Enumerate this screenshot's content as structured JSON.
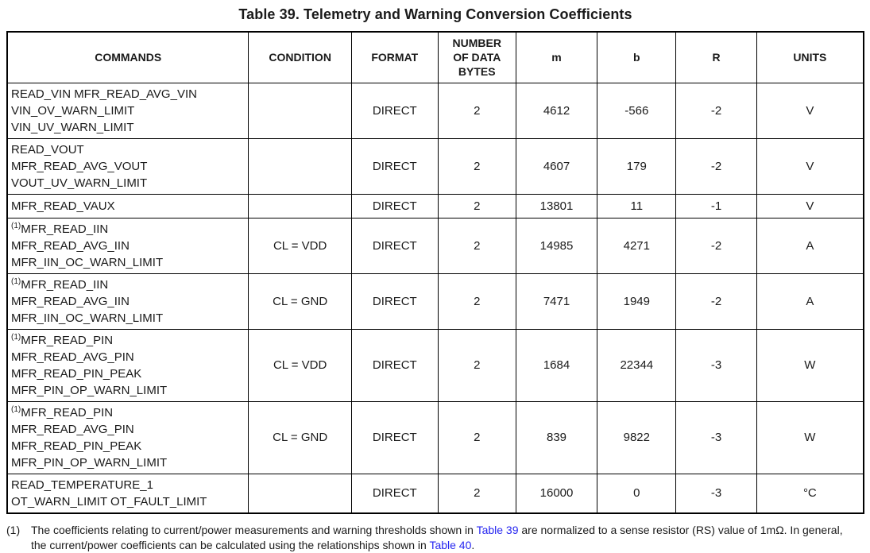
{
  "title": "Table 39. Telemetry and Warning Conversion Coefficients",
  "colors": {
    "link": "#2626f0",
    "text": "#1a1a1a",
    "border": "#000000"
  },
  "table": {
    "headers": [
      {
        "id": "commands",
        "label": "COMMANDS"
      },
      {
        "id": "condition",
        "label": "CONDITION"
      },
      {
        "id": "format",
        "label": "FORMAT"
      },
      {
        "id": "bytes",
        "label": "NUMBER\nOF DATA\nBYTES"
      },
      {
        "id": "m",
        "label": "m"
      },
      {
        "id": "b",
        "label": "b"
      },
      {
        "id": "r",
        "label": "R"
      },
      {
        "id": "units",
        "label": "UNITS"
      }
    ],
    "rows": [
      {
        "sup": "",
        "commands": [
          "READ_VIN MFR_READ_AVG_VIN",
          "VIN_OV_WARN_LIMIT",
          "VIN_UV_WARN_LIMIT"
        ],
        "condition": "",
        "format": "DIRECT",
        "bytes": "2",
        "m": "4612",
        "b": "-566",
        "r": "-2",
        "units": "V",
        "size": "r-3line"
      },
      {
        "sup": "",
        "commands": [
          "READ_VOUT",
          "MFR_READ_AVG_VOUT",
          "VOUT_UV_WARN_LIMIT"
        ],
        "condition": "",
        "format": "DIRECT",
        "bytes": "2",
        "m": "4607",
        "b": "179",
        "r": "-2",
        "units": "V",
        "size": "r-3line"
      },
      {
        "sup": "",
        "commands": [
          "MFR_READ_VAUX"
        ],
        "condition": "",
        "format": "DIRECT",
        "bytes": "2",
        "m": "13801",
        "b": "11",
        "r": "-1",
        "units": "V",
        "size": "r-1line"
      },
      {
        "sup": "(1)",
        "commands": [
          "MFR_READ_IIN",
          "MFR_READ_AVG_IIN",
          "MFR_IIN_OC_WARN_LIMIT"
        ],
        "condition": "CL = VDD",
        "format": "DIRECT",
        "bytes": "2",
        "m": "14985",
        "b": "4271",
        "r": "-2",
        "units": "A",
        "size": "r-3line"
      },
      {
        "sup": "(1)",
        "commands": [
          "MFR_READ_IIN",
          "MFR_READ_AVG_IIN",
          "MFR_IIN_OC_WARN_LIMIT"
        ],
        "condition": "CL = GND",
        "format": "DIRECT",
        "bytes": "2",
        "m": "7471",
        "b": "1949",
        "r": "-2",
        "units": "A",
        "size": "r-3line"
      },
      {
        "sup": "(1)",
        "commands": [
          "MFR_READ_PIN",
          "MFR_READ_AVG_PIN",
          "MFR_READ_PIN_PEAK",
          "MFR_PIN_OP_WARN_LIMIT"
        ],
        "condition": "CL = VDD",
        "format": "DIRECT",
        "bytes": "2",
        "m": "1684",
        "b": "22344",
        "r": "-3",
        "units": "W",
        "size": "r-4line"
      },
      {
        "sup": "(1)",
        "commands": [
          "MFR_READ_PIN",
          "MFR_READ_AVG_PIN",
          "MFR_READ_PIN_PEAK",
          "MFR_PIN_OP_WARN_LIMIT"
        ],
        "condition": "CL = GND",
        "format": "DIRECT",
        "bytes": "2",
        "m": "839",
        "b": "9822",
        "r": "-3",
        "units": "W",
        "size": "r-4line"
      },
      {
        "sup": "",
        "commands": [
          "READ_TEMPERATURE_1",
          "OT_WARN_LIMIT OT_FAULT_LIMIT"
        ],
        "condition": "",
        "format": "DIRECT",
        "bytes": "2",
        "m": "16000",
        "b": "0",
        "r": "-3",
        "units": "°C",
        "size": "r-2line"
      }
    ]
  },
  "footnote": {
    "marker": "(1)",
    "segments": [
      {
        "text": "The coefficients relating to current/power measurements and warning thresholds shown in ",
        "link": false
      },
      {
        "text": "Table 39",
        "link": true
      },
      {
        "text": " are normalized to a sense resistor (RS) value of 1mΩ. In general, the current/power coefficients can be calculated using the relationships shown in ",
        "link": false
      },
      {
        "text": "Table 40",
        "link": true
      },
      {
        "text": ".",
        "link": false
      }
    ]
  }
}
